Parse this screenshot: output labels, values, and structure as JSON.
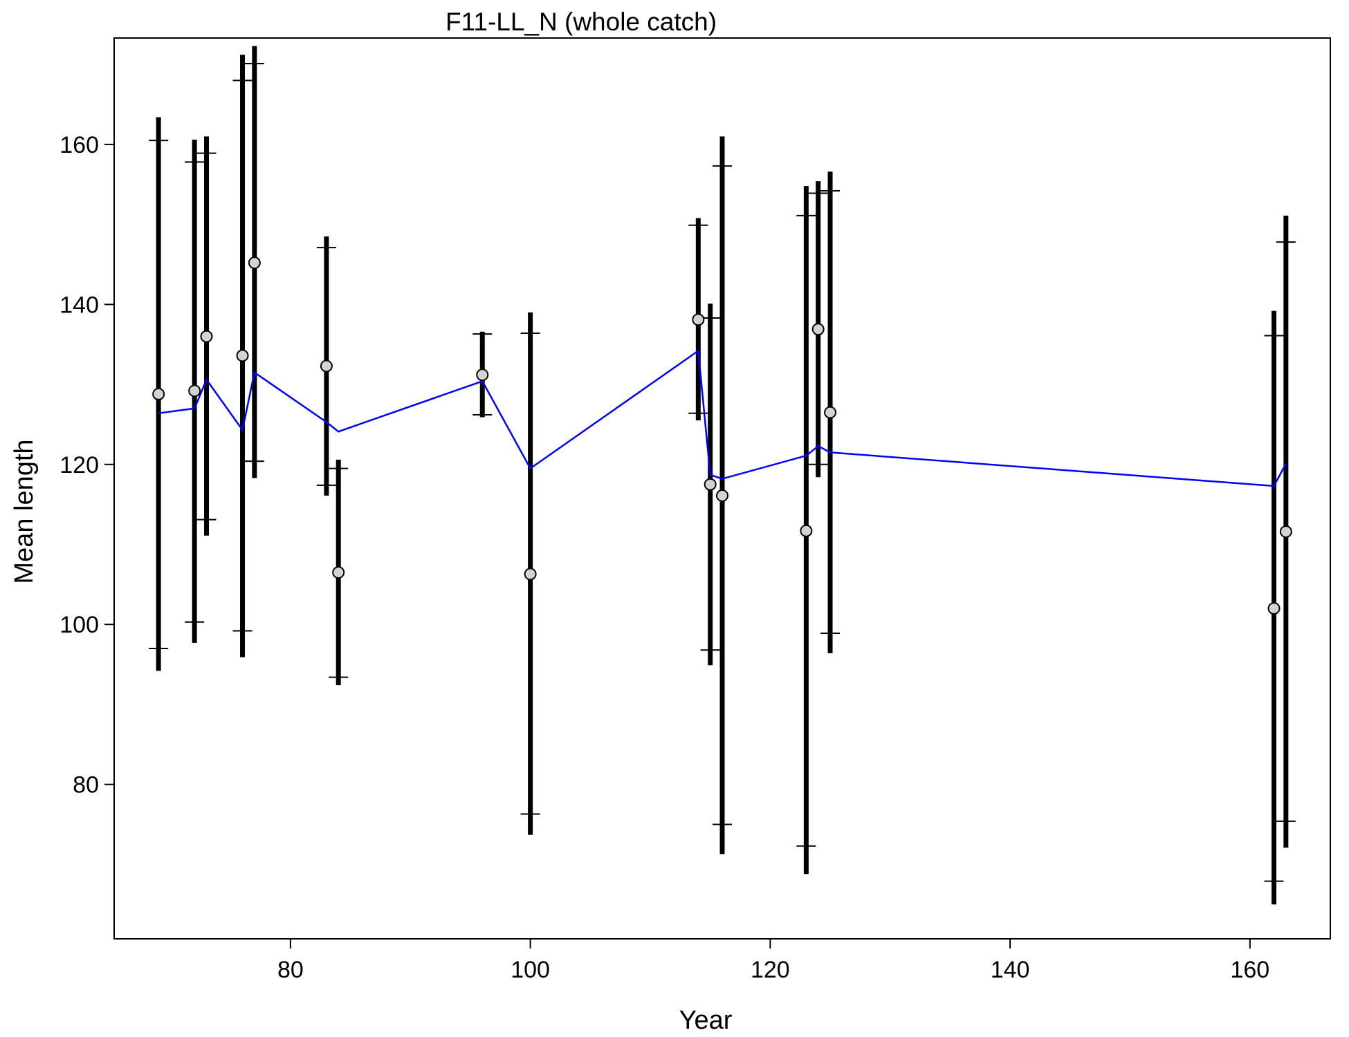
{
  "chart_data": {
    "type": "scatter",
    "title": "F11-LL_N (whole catch)",
    "xlabel": "Year",
    "ylabel": "Mean length",
    "xlim": [
      65.3,
      166.7
    ],
    "ylim": [
      60.7,
      173.3
    ],
    "xticks": [
      80,
      100,
      120,
      140,
      160
    ],
    "yticks": [
      80,
      100,
      120,
      140,
      160
    ],
    "grid": false,
    "colors": {
      "observed": "#d3d3d3",
      "expected": "#0000ff",
      "bars": "#000000"
    },
    "observed": [
      {
        "x": 69,
        "y": 128.8,
        "lo": 94.2,
        "hi": 163.4,
        "ilo": 97.0,
        "ihi": 160.5
      },
      {
        "x": 72,
        "y": 129.2,
        "lo": 97.7,
        "hi": 160.6,
        "ilo": 100.3,
        "ihi": 157.8
      },
      {
        "x": 73,
        "y": 136.0,
        "lo": 111.1,
        "hi": 161.0,
        "ilo": 113.1,
        "ihi": 158.9
      },
      {
        "x": 76,
        "y": 133.6,
        "lo": 95.9,
        "hi": 171.2,
        "ilo": 99.2,
        "ihi": 168.0
      },
      {
        "x": 77,
        "y": 145.2,
        "lo": 118.3,
        "hi": 172.3,
        "ilo": 120.4,
        "ihi": 170.1
      },
      {
        "x": 83,
        "y": 132.3,
        "lo": 116.1,
        "hi": 148.5,
        "ilo": 117.4,
        "ihi": 147.1
      },
      {
        "x": 84,
        "y": 106.5,
        "lo": 92.4,
        "hi": 120.6,
        "ilo": 93.4,
        "ihi": 119.5
      },
      {
        "x": 96,
        "y": 131.2,
        "lo": 125.9,
        "hi": 136.6,
        "ilo": 126.2,
        "ihi": 136.3
      },
      {
        "x": 100,
        "y": 106.3,
        "lo": 73.7,
        "hi": 139.0,
        "ilo": 76.3,
        "ihi": 136.4
      },
      {
        "x": 114,
        "y": 138.1,
        "lo": 125.5,
        "hi": 150.8,
        "ilo": 126.4,
        "ihi": 149.9
      },
      {
        "x": 115,
        "y": 117.5,
        "lo": 94.9,
        "hi": 140.1,
        "ilo": 96.8,
        "ihi": 138.3
      },
      {
        "x": 116,
        "y": 116.1,
        "lo": 71.3,
        "hi": 161.0,
        "ilo": 75.0,
        "ihi": 157.3
      },
      {
        "x": 123,
        "y": 111.7,
        "lo": 68.8,
        "hi": 154.8,
        "ilo": 72.3,
        "ihi": 151.1
      },
      {
        "x": 124,
        "y": 136.9,
        "lo": 118.4,
        "hi": 155.4,
        "ilo": 120.0,
        "ihi": 153.9
      },
      {
        "x": 125,
        "y": 126.5,
        "lo": 96.4,
        "hi": 156.6,
        "ilo": 98.9,
        "ihi": 154.2
      },
      {
        "x": 162,
        "y": 102.0,
        "lo": 65.0,
        "hi": 139.2,
        "ilo": 67.9,
        "ihi": 136.1
      },
      {
        "x": 163,
        "y": 111.6,
        "lo": 72.1,
        "hi": 151.1,
        "ilo": 75.4,
        "ihi": 147.8
      }
    ],
    "expected": {
      "x": [
        69,
        72,
        73,
        76,
        77,
        83,
        84,
        96,
        100,
        114,
        115,
        116,
        123,
        124,
        125,
        162,
        163
      ],
      "y": [
        126.4,
        127.0,
        130.6,
        124.3,
        131.5,
        125.3,
        124.1,
        130.4,
        119.5,
        134.2,
        118.7,
        118.2,
        121.1,
        122.3,
        121.5,
        117.3,
        120.1
      ]
    }
  }
}
